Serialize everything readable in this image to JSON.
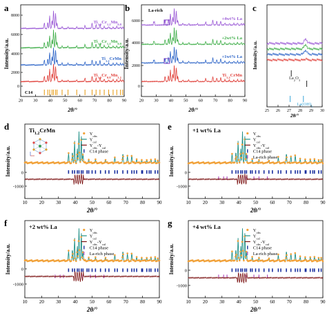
{
  "figure": {
    "axes_xlabel": "2θ/°",
    "axes_ylabel": "Intensity/a.u.",
    "panels": {
      "a": {
        "letter": "a",
        "traces": [
          {
            "label": "Ti1.2Cr1.2Mn0.8",
            "color": "#9b5ad6"
          },
          {
            "label": "Ti1.2Cr1.1Mn0.9",
            "color": "#3fae49"
          },
          {
            "label": "Ti1.2CrMn",
            "color": "#2f66c8"
          },
          {
            "label": "Ti1.2Cr0.9Mn1.1",
            "color": "#e0413b"
          }
        ],
        "phase_label": "C14",
        "yticks": [
          "0",
          "2000",
          "4000",
          "6000",
          "8000"
        ],
        "xticks": [
          "20",
          "30",
          "40",
          "50",
          "60",
          "70",
          "80",
          "90"
        ]
      },
      "b": {
        "letter": "b",
        "annotation": "La-rich",
        "traces": [
          {
            "label": "+4wt% La",
            "color": "#9b5ad6"
          },
          {
            "label": "+2wt% La",
            "color": "#3fae49"
          },
          {
            "label": "+1wt% La",
            "color": "#2f66c8"
          },
          {
            "label": "Ti1.2CrMn",
            "color": "#e0413b"
          }
        ],
        "yticks": [
          "0",
          "2000",
          "4000",
          "6000"
        ],
        "xticks": [
          "20",
          "30",
          "40",
          "50",
          "60",
          "70",
          "80",
          "90"
        ]
      },
      "c": {
        "letter": "c",
        "refs": [
          {
            "label": "La2O3",
            "color": "#222222"
          },
          {
            "label": "La(OH)3",
            "color": "#39a6d8"
          }
        ],
        "xticks": [
          "25",
          "26",
          "27",
          "28",
          "29",
          "30"
        ]
      },
      "d": {
        "letter": "d",
        "title": "Ti1.2CrMn",
        "legend": [
          "Yobs",
          "Ycal",
          "Yobs-Ycal",
          "C14 phase"
        ],
        "yticks": [
          "0",
          "-1000"
        ],
        "xticks": [
          "10",
          "20",
          "30",
          "40",
          "50",
          "60",
          "70",
          "80",
          "90"
        ]
      },
      "e": {
        "letter": "e",
        "title": "+1 wt% La",
        "legend": [
          "Yobs",
          "Ycal",
          "Yobs-Ycal",
          "C14 phase",
          "La-rich phase"
        ],
        "yticks": [
          "0",
          "-1000"
        ],
        "xticks": [
          "10",
          "20",
          "30",
          "40",
          "50",
          "60",
          "70",
          "80",
          "90"
        ]
      },
      "f": {
        "letter": "f",
        "title": "+2 wt% La",
        "legend": [
          "Yobs",
          "Ycal",
          "Yobs-Ycal",
          "C14 phase",
          "La-rich phase"
        ],
        "yticks": [
          "0",
          "-1000"
        ],
        "xticks": [
          "10",
          "20",
          "30",
          "40",
          "50",
          "60",
          "70",
          "80",
          "90"
        ]
      },
      "g": {
        "letter": "g",
        "title": "+4 wt% La",
        "legend": [
          "Yobs",
          "Ycal",
          "Yobs-Ycal",
          "C14 phase",
          "La-rich phase"
        ],
        "yticks": [
          "0",
          "-1000"
        ],
        "xticks": [
          "10",
          "20",
          "30",
          "40",
          "50",
          "60",
          "70",
          "80",
          "90"
        ]
      }
    },
    "colors": {
      "obs": "#f2a23a",
      "cal": "#1f8f86",
      "diff": "#7a1010",
      "c14": "#1a2f9e",
      "la_rich": "#b04dbd"
    }
  }
}
